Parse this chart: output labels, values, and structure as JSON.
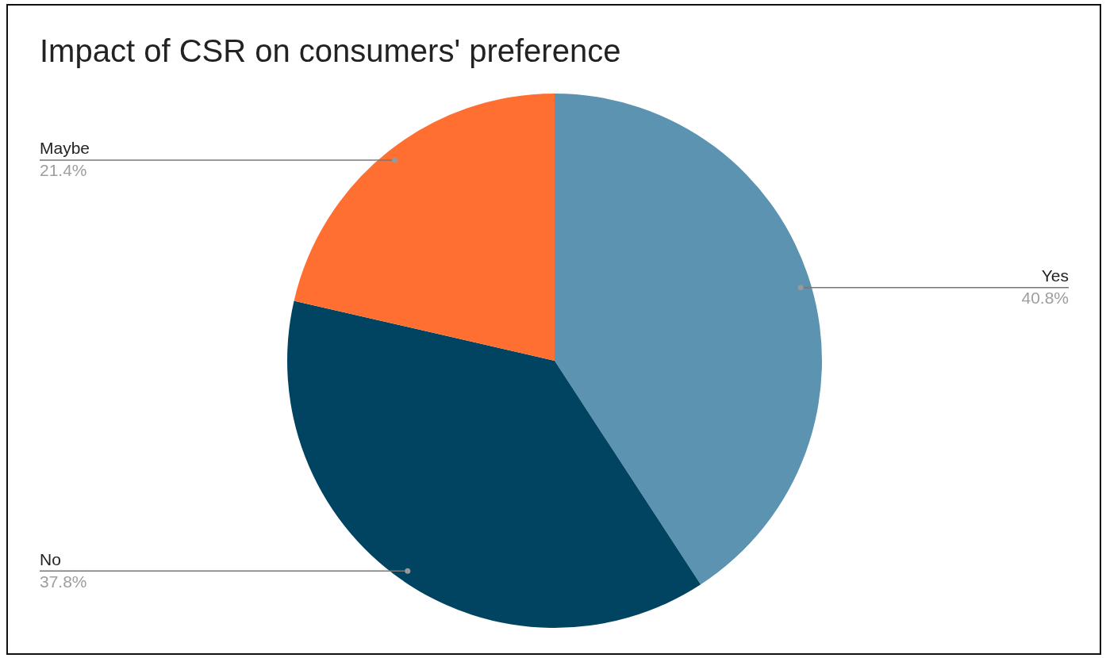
{
  "chart_data": {
    "type": "pie",
    "title": "Impact of CSR on consumers' preference",
    "categories": [
      "Yes",
      "No",
      "Maybe"
    ],
    "values": [
      40.8,
      37.8,
      21.4
    ],
    "value_labels": [
      "40.8%",
      "37.8%",
      "21.4%"
    ],
    "colors": [
      "#5b93b0",
      "#004461",
      "#ff6f31"
    ]
  }
}
